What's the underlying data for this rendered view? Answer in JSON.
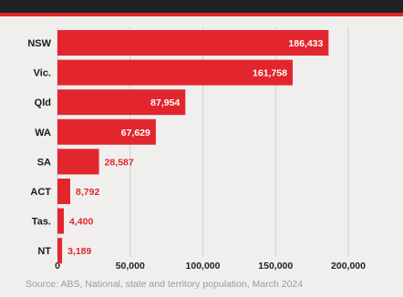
{
  "chart_data": {
    "type": "bar",
    "orientation": "horizontal",
    "categories": [
      "NSW",
      "Vic.",
      "Qld",
      "WA",
      "SA",
      "ACT",
      "Tas.",
      "NT"
    ],
    "values": [
      186433,
      161758,
      87954,
      67629,
      28587,
      8792,
      4400,
      3189
    ],
    "value_labels": [
      "186,433",
      "161,758",
      "87,954",
      "67,629",
      "28,587",
      "8,792",
      "4,400",
      "3,189"
    ],
    "x_ticks": [
      0,
      50000,
      100000,
      150000,
      200000
    ],
    "x_tick_labels": [
      "0",
      "50,000",
      "100,000",
      "150,000",
      "200,000"
    ],
    "xlim": [
      0,
      200000
    ],
    "grid": true,
    "bar_color": "#e3262e",
    "grid_color": "#cfcfcf",
    "label_inside_color": "#ffffff",
    "label_outside_color": "#e3262e"
  },
  "source": "Source: ABS, National, state and territory population, March 2024"
}
